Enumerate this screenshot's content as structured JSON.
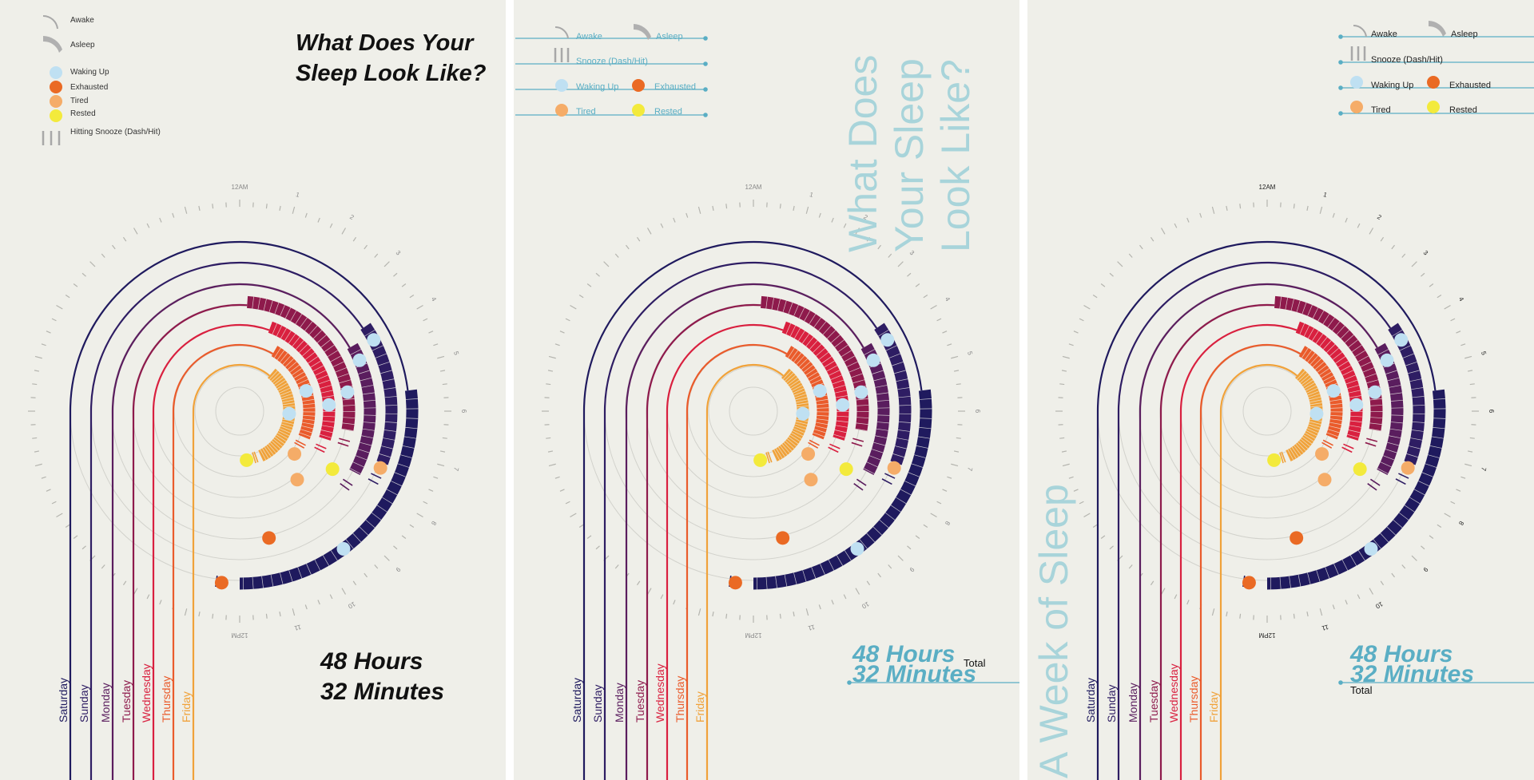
{
  "colors": {
    "background": "#efefe9",
    "accent_teal": "#5aaec4",
    "title_light_teal": "#a8d4da",
    "saturday": "#1f1a5e",
    "sunday": "#2e1d63",
    "monday": "#5a1d5e",
    "tuesday": "#8e1a4c",
    "wednesday": "#d9203f",
    "thursday": "#ea5b2b",
    "friday": "#f0a23a",
    "waking_up": "#bfe0f2",
    "exhausted": "#ea6a24",
    "tired": "#f5ac68",
    "rested": "#f3ea3c"
  },
  "legend": {
    "awake": "Awake",
    "asleep": "Asleep",
    "waking_up": "Waking Up",
    "exhausted": "Exhausted",
    "tired": "Tired",
    "rested": "Rested",
    "snooze_long": "Hitting Snooze (Dash/Hit)",
    "snooze_short": "Snooze (Dash/Hit)"
  },
  "days": [
    "Saturday",
    "Sunday",
    "Monday",
    "Tuesday",
    "Wednesday",
    "Thursday",
    "Friday"
  ],
  "hour_labels": [
    "12AM",
    "1",
    "2",
    "3",
    "4",
    "5",
    "6",
    "7",
    "8",
    "9",
    "10",
    "11",
    "12PM"
  ],
  "panel1": {
    "title_line1": "What Does Your",
    "title_line2": "Sleep Look Like?",
    "total_line1": "48 Hours",
    "total_line2": "32 Minutes"
  },
  "panel2": {
    "title_line1": "What Does",
    "title_line2": "Your Sleep",
    "title_line3": "Look Like?",
    "total_line1": "48 Hours",
    "total_line2": "32 Minutes",
    "total_label": "Total"
  },
  "panel3": {
    "side_title": "A Week of Sleep",
    "total_line1": "48 Hours",
    "total_line2": "32 Minutes",
    "total_label": "Total"
  }
}
